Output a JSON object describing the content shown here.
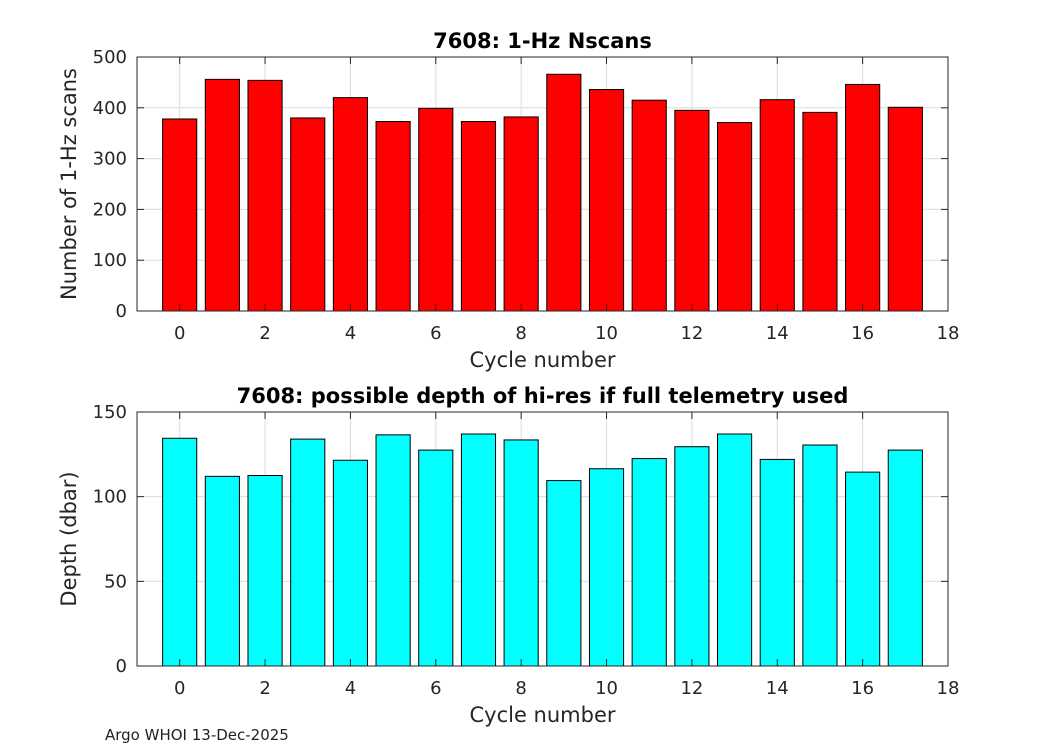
{
  "footer": "Argo WHOI 13-Dec-2025",
  "chart_data": [
    {
      "type": "bar",
      "title": "7608: 1-Hz Nscans",
      "xlabel": "Cycle number",
      "ylabel": "Number of 1-Hz scans",
      "x": [
        0,
        1,
        2,
        3,
        4,
        5,
        6,
        7,
        8,
        9,
        10,
        11,
        12,
        13,
        14,
        15,
        16,
        17
      ],
      "values": [
        378,
        456,
        454,
        380,
        420,
        373,
        399,
        373,
        382,
        466,
        436,
        415,
        395,
        371,
        416,
        391,
        446,
        401
      ],
      "xlim": [
        -1,
        18
      ],
      "ylim": [
        0,
        500
      ],
      "xticks": [
        0,
        2,
        4,
        6,
        8,
        10,
        12,
        14,
        16,
        18
      ],
      "yticks": [
        0,
        100,
        200,
        300,
        400,
        500
      ],
      "bar_color": "#ff0000",
      "grid": true
    },
    {
      "type": "bar",
      "title": "7608: possible depth of hi-res if full telemetry used",
      "xlabel": "Cycle number",
      "ylabel": "Depth (dbar)",
      "x": [
        0,
        1,
        2,
        3,
        4,
        5,
        6,
        7,
        8,
        9,
        10,
        11,
        12,
        13,
        14,
        15,
        16,
        17
      ],
      "values": [
        134.5,
        112,
        112.5,
        134,
        121.5,
        136.5,
        127.5,
        137,
        133.5,
        109.5,
        116.5,
        122.5,
        129.5,
        137,
        122,
        130.5,
        114.5,
        127.5
      ],
      "xlim": [
        -1,
        18
      ],
      "ylim": [
        0,
        150
      ],
      "xticks": [
        0,
        2,
        4,
        6,
        8,
        10,
        12,
        14,
        16,
        18
      ],
      "yticks": [
        0,
        50,
        100,
        150
      ],
      "bar_color": "#00ffff",
      "grid": true
    }
  ]
}
